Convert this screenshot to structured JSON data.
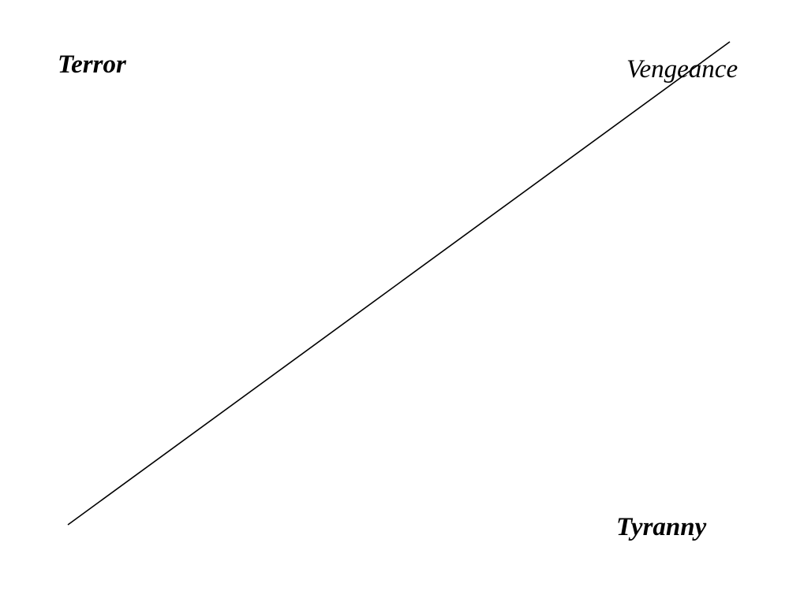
{
  "labels": {
    "terror": "Terror",
    "vengeance": "Vengeance",
    "tyranny": "Tyranny"
  },
  "colors": {
    "background": "#ffffff",
    "ink": "#000000"
  }
}
